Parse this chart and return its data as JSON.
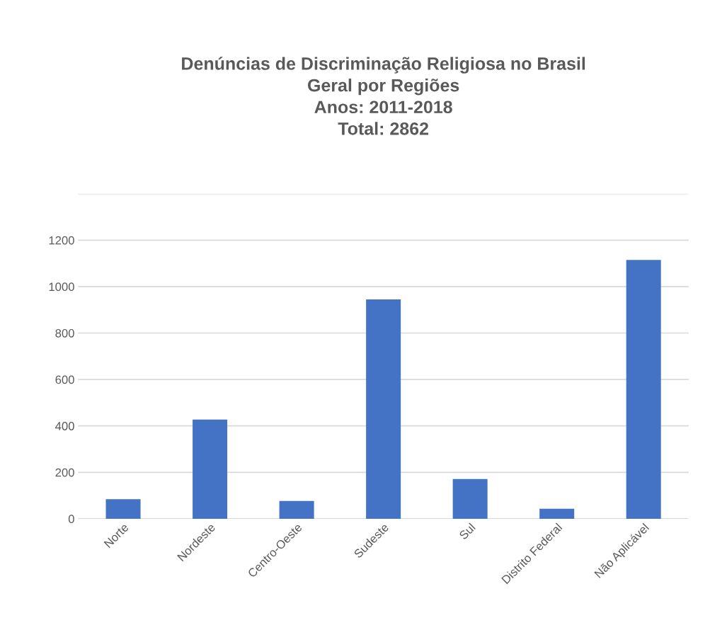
{
  "chart_data": {
    "type": "bar",
    "title": "Denúncias de Discriminação Religiosa no Brasil\nGeral por Regiões\nAnos: 2011-2018\nTotal: 2862",
    "categories": [
      "Norte",
      "Nordeste",
      "Centro-Oeste",
      "Sudeste",
      "Sul",
      "Distrito Federal",
      "Não Aplicável"
    ],
    "values": [
      84,
      427,
      77,
      945,
      171,
      43,
      1115
    ],
    "color": "#4472c4",
    "ylim": [
      0,
      1400
    ],
    "yticks": [
      0,
      200,
      400,
      600,
      800,
      1000,
      1200,
      {
        "value": 1400,
        "label": null
      }
    ],
    "grid": "y"
  }
}
